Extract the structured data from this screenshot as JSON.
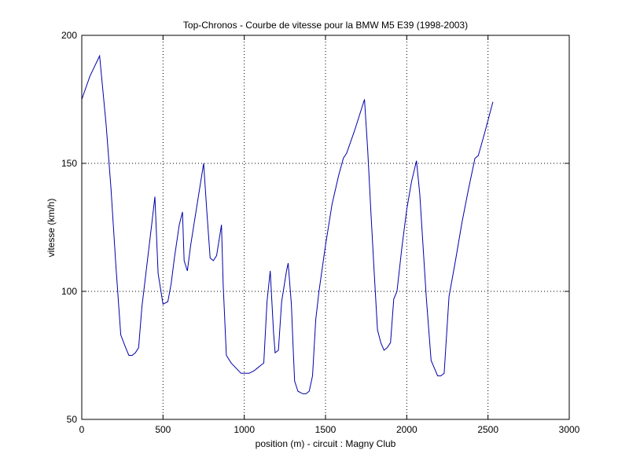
{
  "chart_data": {
    "type": "line",
    "title": "Top-Chronos - Courbe de vitesse pour la BMW M5 E39 (1998-2003)",
    "xlabel": "position (m) - circuit : Magny Club",
    "ylabel": "vitesse (km/h)",
    "xlim": [
      0,
      3000
    ],
    "ylim": [
      50,
      200
    ],
    "xticks": [
      "0",
      "500",
      "1000",
      "1500",
      "2000",
      "2500",
      "3000"
    ],
    "yticks": [
      "50",
      "100",
      "150",
      "200"
    ],
    "grid": "dotted",
    "line_color": "#0000aa",
    "series": [
      {
        "x": [
          0,
          50,
          110,
          150,
          180,
          210,
          240,
          270,
          290,
          310,
          330,
          350,
          370,
          400,
          430,
          450,
          470,
          500,
          530,
          550,
          570,
          600,
          620,
          630,
          650,
          670,
          690,
          720,
          750,
          770,
          790,
          810,
          830,
          860,
          870,
          890,
          920,
          950,
          980,
          1000,
          1030,
          1060,
          1080,
          1100,
          1120,
          1140,
          1160,
          1180,
          1190,
          1210,
          1230,
          1240,
          1260,
          1270,
          1290,
          1300,
          1310,
          1320,
          1330,
          1360,
          1380,
          1400,
          1420,
          1440,
          1460,
          1500,
          1540,
          1580,
          1610,
          1630,
          1680,
          1740,
          1760,
          1780,
          1800,
          1820,
          1840,
          1860,
          1880,
          1900,
          1920,
          1940,
          1970,
          2000,
          2030,
          2060,
          2080,
          2100,
          2120,
          2150,
          2170,
          2190,
          2210,
          2230,
          2260,
          2300,
          2340,
          2380,
          2420,
          2440,
          2480,
          2530
        ],
        "y": [
          175,
          184,
          192,
          165,
          140,
          110,
          83,
          78,
          75,
          75,
          76,
          78,
          94,
          110,
          126,
          137,
          107,
          95,
          96,
          103,
          113,
          126,
          131,
          112,
          108,
          118,
          126,
          138,
          150,
          131,
          113,
          112,
          114,
          126,
          103,
          75,
          72,
          70,
          68,
          68,
          68,
          69,
          70,
          71,
          72,
          96,
          108,
          84,
          76,
          77,
          96,
          100,
          108,
          111,
          95,
          79,
          65,
          63,
          61,
          60,
          60,
          61,
          67,
          89,
          100,
          118,
          134,
          145,
          152,
          154,
          163,
          175,
          155,
          130,
          107,
          85,
          80,
          77,
          78,
          80,
          97,
          100,
          117,
          132,
          143,
          151,
          138,
          118,
          98,
          73,
          70,
          67,
          67,
          68,
          98,
          112,
          127,
          140,
          152,
          153,
          162,
          174
        ]
      }
    ]
  }
}
